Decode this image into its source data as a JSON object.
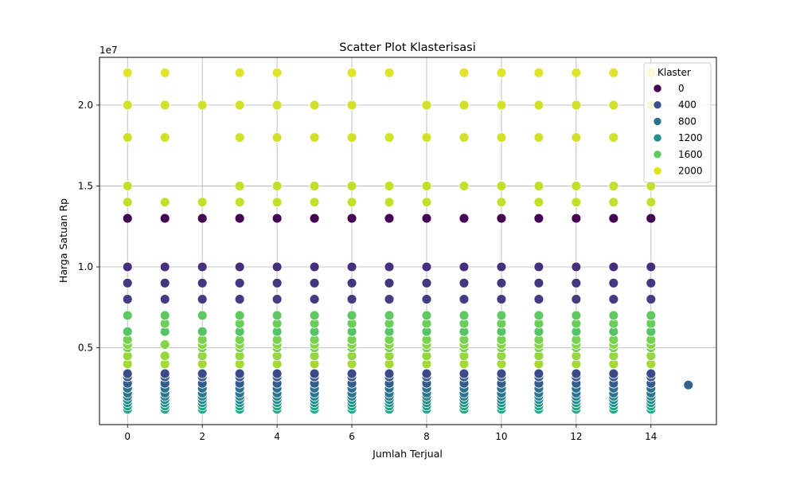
{
  "chart_data": {
    "type": "scatter",
    "title": "Scatter Plot Klasterisasi",
    "xlabel": "Jumlah Terjual",
    "ylabel": "Harga Satuan Rp",
    "y_offset_label": "1e7",
    "xlim": [
      -0.75,
      15.75
    ],
    "ylim": [
      250000,
      22950000
    ],
    "xticks": [
      0,
      2,
      4,
      6,
      8,
      10,
      12,
      14
    ],
    "xtick_labels": [
      "0",
      "2",
      "4",
      "6",
      "8",
      "10",
      "12",
      "14"
    ],
    "yticks": [
      5000000,
      10000000,
      15000000,
      20000000
    ],
    "ytick_labels": [
      "0.5",
      "1.0",
      "1.5",
      "2.0"
    ],
    "grid": true,
    "legend": {
      "title": "Klaster",
      "position": "top-right",
      "entries": [
        {
          "label": "0",
          "color": "#440154"
        },
        {
          "label": "400",
          "color": "#3b518b"
        },
        {
          "label": "800",
          "color": "#2c728e"
        },
        {
          "label": "1200",
          "color": "#21918c"
        },
        {
          "label": "1600",
          "color": "#5ec962"
        },
        {
          "label": "2000",
          "color": "#e2e418"
        }
      ]
    },
    "colormap": {
      "name": "viridis",
      "stops": [
        "#440154",
        "#482878",
        "#3e4989",
        "#31688e",
        "#26828e",
        "#1f9e89",
        "#35b779",
        "#6ece58",
        "#b5de2b",
        "#fde725"
      ],
      "range": [
        0,
        2200
      ]
    },
    "price_clusters": [
      {
        "y": 22000000,
        "klaster": 2100,
        "xs": [
          0,
          1,
          3,
          4,
          6,
          7,
          9,
          10,
          11,
          12,
          13,
          14
        ]
      },
      {
        "y": 20000000,
        "klaster": 2050,
        "xs": [
          0,
          1,
          2,
          3,
          4,
          5,
          6,
          8,
          9,
          10,
          11,
          12,
          13,
          14
        ]
      },
      {
        "y": 18000000,
        "klaster": 2050,
        "xs": [
          0,
          1,
          3,
          4,
          5,
          6,
          7,
          8,
          9,
          10,
          11,
          12,
          13
        ]
      },
      {
        "y": 15000000,
        "klaster": 2000,
        "xs": [
          0,
          3,
          4,
          5,
          6,
          7,
          8,
          9,
          10,
          11,
          12,
          13,
          14
        ]
      },
      {
        "y": 14000000,
        "klaster": 2000,
        "xs": [
          0,
          1,
          2,
          3,
          4,
          5,
          6,
          7,
          8,
          10,
          11,
          12,
          13,
          14
        ]
      },
      {
        "y": 13000000,
        "klaster": 0,
        "xs": [
          0,
          1,
          2,
          3,
          4,
          5,
          6,
          7,
          8,
          9,
          10,
          11,
          12,
          13,
          14
        ]
      },
      {
        "y": 10000000,
        "klaster": 300,
        "xs": [
          0,
          1,
          2,
          3,
          4,
          5,
          6,
          7,
          8,
          9,
          10,
          11,
          12,
          13,
          14
        ]
      },
      {
        "y": 9000000,
        "klaster": 350,
        "xs": [
          0,
          1,
          2,
          3,
          4,
          5,
          6,
          7,
          8,
          9,
          10,
          11,
          12,
          13,
          14
        ]
      },
      {
        "y": 8000000,
        "klaster": 400,
        "xs": [
          0,
          1,
          2,
          3,
          4,
          5,
          6,
          7,
          8,
          9,
          10,
          11,
          12,
          13,
          14
        ]
      },
      {
        "y": 7000000,
        "klaster": 1650,
        "xs": [
          0,
          1,
          2,
          3,
          4,
          5,
          6,
          7,
          8,
          9,
          10,
          11,
          12,
          13,
          14
        ]
      },
      {
        "y": 6500000,
        "klaster": 1700,
        "xs": [
          1,
          3,
          4,
          5,
          6,
          7,
          8,
          9,
          10,
          11,
          12,
          13,
          14
        ]
      },
      {
        "y": 6000000,
        "klaster": 1600,
        "xs": [
          0,
          1,
          2,
          3,
          4,
          5,
          6,
          7,
          8,
          9,
          10,
          11,
          12,
          13,
          14
        ]
      },
      {
        "y": 5500000,
        "klaster": 1750,
        "xs": [
          0,
          2,
          3,
          4,
          5,
          6,
          7,
          8,
          9,
          10,
          11,
          12,
          13,
          14
        ]
      },
      {
        "y": 5200000,
        "klaster": 1800,
        "xs": [
          0,
          1,
          2,
          3,
          4,
          5,
          6,
          7,
          8,
          9,
          10,
          11,
          12,
          13,
          14
        ]
      },
      {
        "y": 5000000,
        "klaster": 1750,
        "xs": [
          0,
          2,
          3,
          4,
          5,
          6,
          7,
          8,
          9,
          10,
          11,
          12,
          13,
          14
        ]
      },
      {
        "y": 4500000,
        "klaster": 1850,
        "xs": [
          0,
          1,
          2,
          3,
          4,
          5,
          6,
          7,
          8,
          9,
          10,
          11,
          12,
          13,
          14
        ]
      },
      {
        "y": 4000000,
        "klaster": 1900,
        "xs": [
          0,
          1,
          2,
          3,
          4,
          5,
          6,
          7,
          8,
          9,
          10,
          11,
          12,
          13,
          14
        ]
      },
      {
        "y": 3400000,
        "klaster": 500,
        "xs": [
          0,
          1,
          2,
          3,
          4,
          5,
          6,
          7,
          8,
          9,
          10,
          11,
          12,
          13,
          14
        ]
      },
      {
        "y": 3200000,
        "klaster": 600,
        "xs": [
          0,
          1,
          2,
          3,
          4,
          5,
          6,
          7,
          8,
          9,
          10,
          11,
          12,
          13,
          14
        ]
      },
      {
        "y": 2800000,
        "klaster": 650,
        "xs": [
          0,
          1,
          2,
          3,
          4,
          5,
          6,
          7,
          8,
          9,
          10,
          11,
          12,
          13,
          14
        ]
      },
      {
        "y": 2700000,
        "klaster": 700,
        "xs": [
          15
        ]
      },
      {
        "y": 2500000,
        "klaster": 800,
        "xs": [
          0,
          1,
          2,
          3,
          4,
          5,
          6,
          7,
          8,
          9,
          10,
          11,
          12,
          13,
          14
        ]
      },
      {
        "y": 2200000,
        "klaster": 850,
        "xs": [
          0,
          1,
          2,
          3,
          4,
          5,
          6,
          7,
          8,
          9,
          10,
          11,
          12,
          13,
          14
        ]
      },
      {
        "y": 2000000,
        "klaster": 950,
        "xs": [
          0,
          1,
          2,
          3,
          4,
          5,
          6,
          7,
          8,
          9,
          10,
          11,
          12,
          13,
          14
        ]
      },
      {
        "y": 1800000,
        "klaster": 1050,
        "xs": [
          0,
          1,
          2,
          3,
          4,
          5,
          6,
          7,
          8,
          9,
          10,
          11,
          12,
          13,
          14
        ]
      },
      {
        "y": 1600000,
        "klaster": 1150,
        "xs": [
          0,
          1,
          2,
          3,
          4,
          5,
          6,
          7,
          8,
          9,
          10,
          11,
          12,
          13,
          14
        ]
      },
      {
        "y": 1400000,
        "klaster": 1250,
        "xs": [
          0,
          1,
          2,
          3,
          4,
          5,
          6,
          7,
          8,
          9,
          10,
          11,
          12,
          13,
          14
        ]
      },
      {
        "y": 1200000,
        "klaster": 1300,
        "xs": [
          0,
          1,
          2,
          3,
          4,
          5,
          6,
          7,
          8,
          9,
          10,
          11,
          12,
          13,
          14
        ]
      }
    ]
  }
}
